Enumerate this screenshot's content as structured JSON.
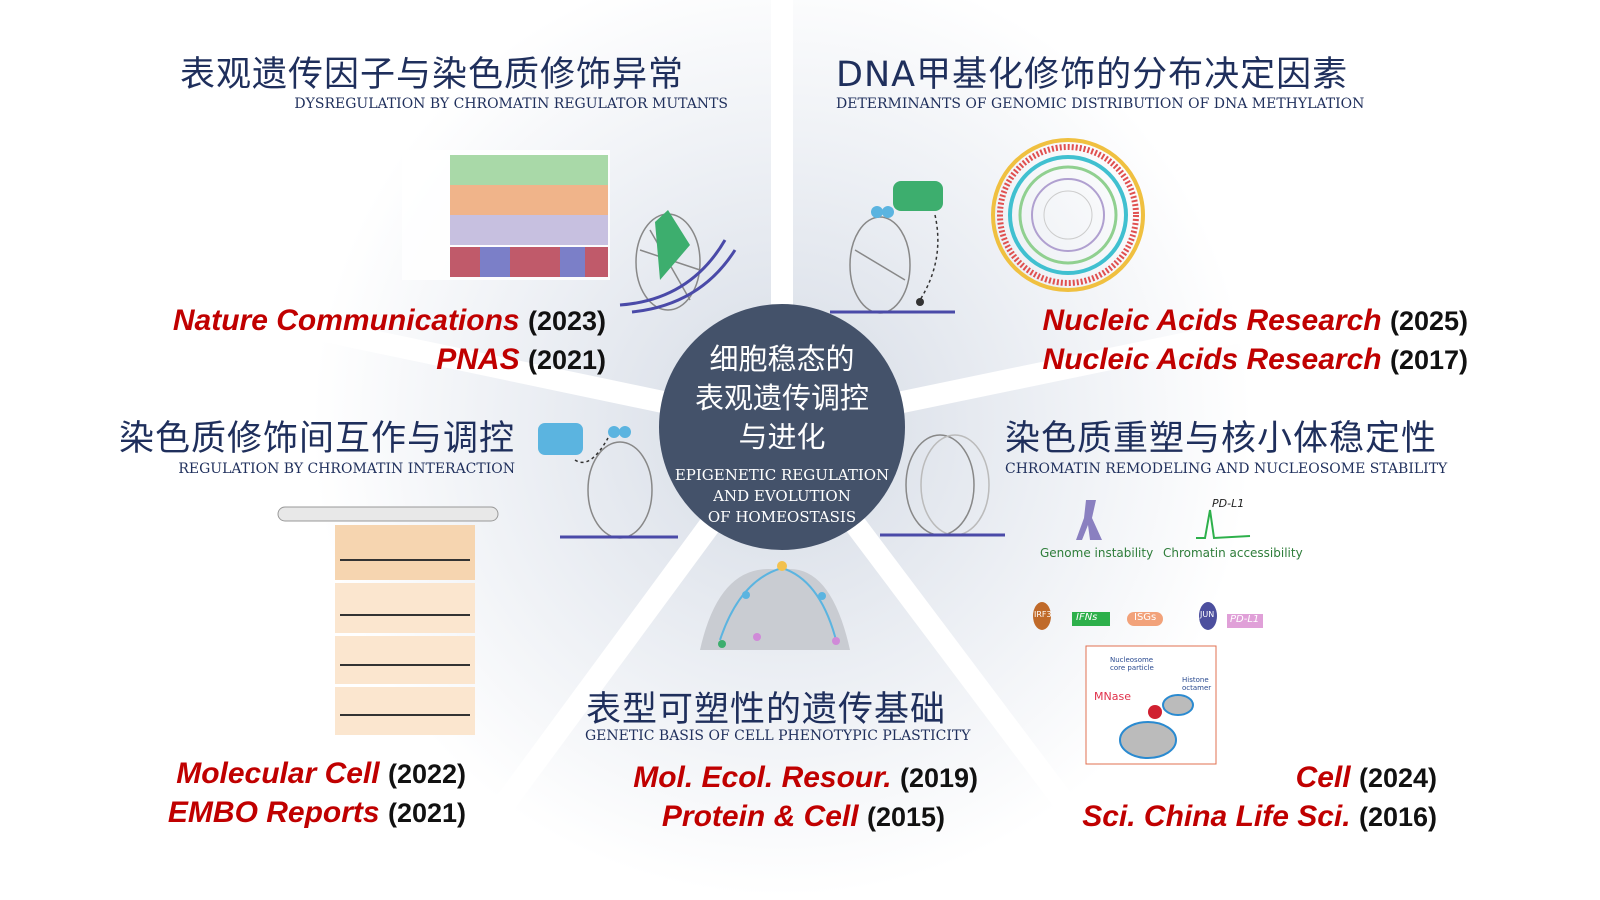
{
  "center": {
    "title_zh": [
      "细胞稳态的",
      "表观遗传调控",
      "与进化"
    ],
    "title_en": [
      "EPIGENETIC REGULATION",
      "AND EVOLUTION",
      "OF HOMEOSTASIS"
    ]
  },
  "sections": {
    "top_left": {
      "title": "表观遗传因子与染色质修饰异常",
      "subtitle": "DYSREGULATION BY CHROMATIN REGULATOR MUTANTS",
      "citations": [
        {
          "journal": "Nature Communications",
          "year": "(2023)"
        },
        {
          "journal": "PNAS",
          "year": "(2021)"
        }
      ]
    },
    "top_right": {
      "title": "DNA甲基化修饰的分布决定因素",
      "subtitle": "DETERMINANTS OF GENOMIC DISTRIBUTION OF DNA METHYLATION",
      "citations": [
        {
          "journal": "Nucleic Acids Research",
          "year": "(2025)"
        },
        {
          "journal": "Nucleic Acids Research",
          "year": "(2017)"
        }
      ]
    },
    "middle_left": {
      "title": "染色质修饰间互作与调控",
      "subtitle": "REGULATION BY CHROMATIN INTERACTION",
      "citations": [
        {
          "journal": "Molecular Cell",
          "year": "(2022)"
        },
        {
          "journal": "EMBO Reports",
          "year": "(2021)"
        }
      ]
    },
    "middle_right": {
      "title": "染色质重塑与核小体稳定性",
      "subtitle": "CHROMATIN REMODELING AND NUCLEOSOME STABILITY",
      "citations": [
        {
          "journal": "Cell",
          "year": "(2024)"
        },
        {
          "journal": "Sci. China Life Sci.",
          "year": "(2016)"
        }
      ],
      "figure_labels": {
        "genome": "Genome instability",
        "chromatin": "Chromatin accessibility",
        "pdl1": "PD-L1",
        "irf3": "IRF3",
        "ifns": "IFNs",
        "isgs": "ISGs",
        "jun": "JUN",
        "mnase": "MNase",
        "core": "Nucleosome core particle",
        "octamer": "Histone octamer"
      }
    },
    "bottom": {
      "title": "表型可塑性的遗传基础",
      "subtitle": "GENETIC BASIS OF CELL PHENOTYPIC PLASTICITY",
      "citations": [
        {
          "journal": "Mol. Ecol. Resour.",
          "year": "(2019)"
        },
        {
          "journal": "Protein & Cell",
          "year": "(2015)"
        }
      ]
    }
  },
  "colors": {
    "title": "#1f2f5c",
    "journal": "#c00000",
    "center": "#44526a",
    "accent_green": "#3dae6e",
    "accent_blue": "#5bb4e0"
  }
}
